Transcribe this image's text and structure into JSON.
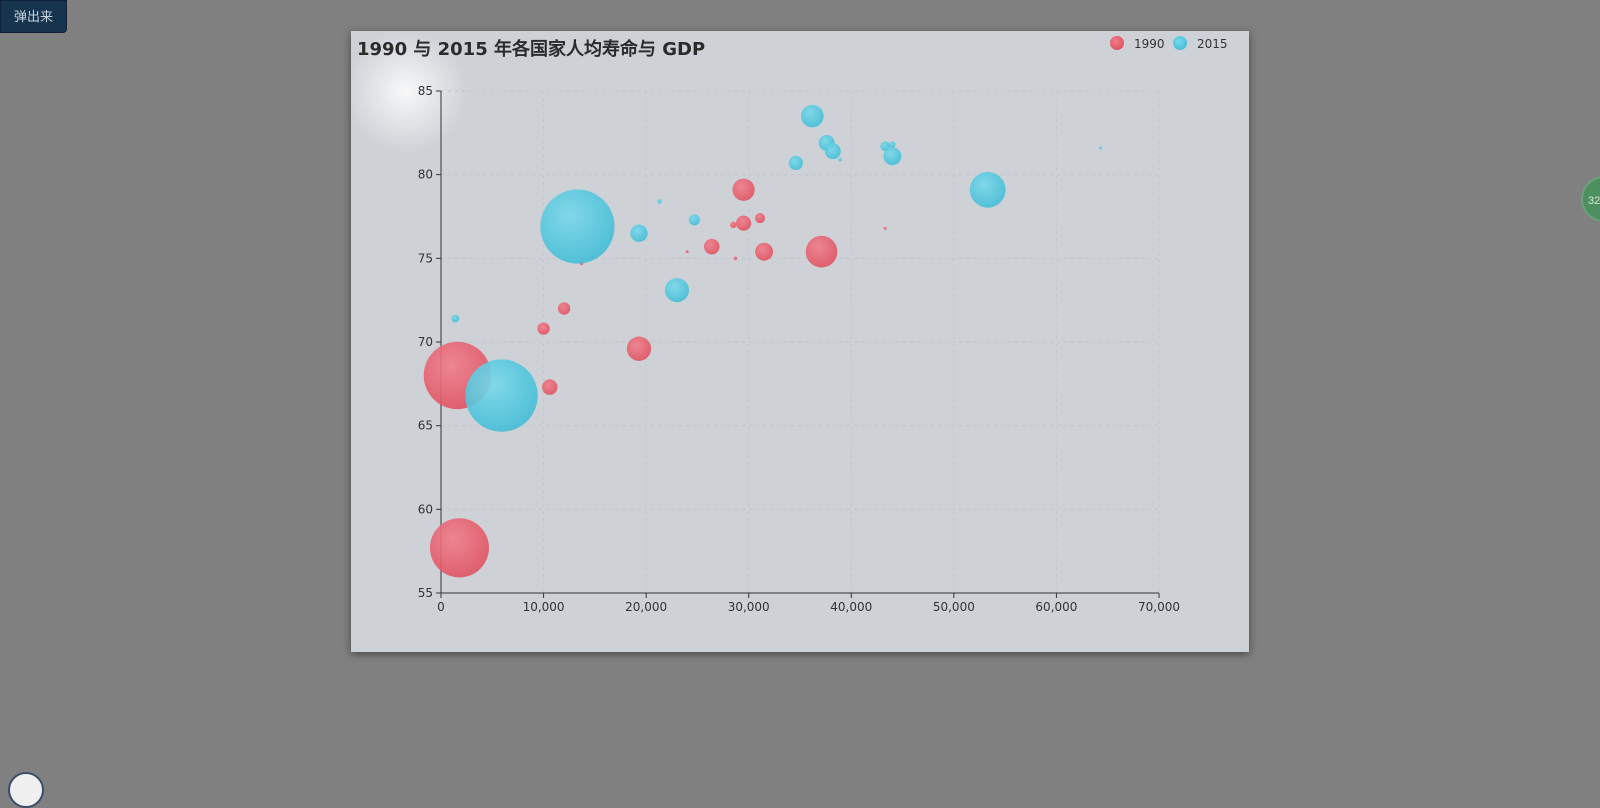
{
  "toolbar": {
    "popout_label": "弹出来"
  },
  "side_widget": {
    "text": "32"
  },
  "chart_data": {
    "type": "scatter",
    "title": "1990 与 2015 年各国家人均寿命与 GDP",
    "xlabel": "",
    "ylabel": "",
    "xlim": [
      0,
      70000
    ],
    "ylim": [
      55,
      85
    ],
    "xticks": [
      "0",
      "10,000",
      "20,000",
      "30,000",
      "40,000",
      "50,000",
      "60,000",
      "70,000"
    ],
    "yticks": [
      "55",
      "60",
      "65",
      "70",
      "75",
      "80",
      "85"
    ],
    "legend_position": "top-right",
    "series": [
      {
        "name": "1990",
        "color": "#e85a6b",
        "points": [
          {
            "x": 1600,
            "y": 68.0,
            "size": 1134
          },
          {
            "x": 1800,
            "y": 57.7,
            "size": 871
          },
          {
            "x": 10000,
            "y": 70.8,
            "size": 38
          },
          {
            "x": 12000,
            "y": 72.0,
            "size": 38
          },
          {
            "x": 10600,
            "y": 67.3,
            "size": 60
          },
          {
            "x": 19300,
            "y": 69.6,
            "size": 148
          },
          {
            "x": 13700,
            "y": 74.7,
            "size": 3
          },
          {
            "x": 24000,
            "y": 75.4,
            "size": 1
          },
          {
            "x": 26400,
            "y": 75.7,
            "size": 60
          },
          {
            "x": 28700,
            "y": 75.0,
            "size": 3
          },
          {
            "x": 28500,
            "y": 77.0,
            "size": 10
          },
          {
            "x": 29500,
            "y": 77.1,
            "size": 57
          },
          {
            "x": 31100,
            "y": 77.4,
            "size": 25
          },
          {
            "x": 29500,
            "y": 79.1,
            "size": 123
          },
          {
            "x": 31500,
            "y": 75.4,
            "size": 80
          },
          {
            "x": 37100,
            "y": 75.4,
            "size": 250
          },
          {
            "x": 43300,
            "y": 76.8,
            "size": 2
          }
        ]
      },
      {
        "name": "2015",
        "color": "#50c8de",
        "points": [
          {
            "x": 13300,
            "y": 76.9,
            "size": 1376
          },
          {
            "x": 5900,
            "y": 66.8,
            "size": 1311
          },
          {
            "x": 1400,
            "y": 71.4,
            "size": 15
          },
          {
            "x": 19300,
            "y": 76.5,
            "size": 75
          },
          {
            "x": 21300,
            "y": 78.4,
            "size": 5
          },
          {
            "x": 23000,
            "y": 73.1,
            "size": 145
          },
          {
            "x": 24700,
            "y": 77.3,
            "size": 30
          },
          {
            "x": 34600,
            "y": 80.7,
            "size": 50
          },
          {
            "x": 36200,
            "y": 83.5,
            "size": 127
          },
          {
            "x": 37600,
            "y": 81.9,
            "size": 64
          },
          {
            "x": 38200,
            "y": 81.4,
            "size": 63
          },
          {
            "x": 38900,
            "y": 80.9,
            "size": 3
          },
          {
            "x": 43300,
            "y": 81.7,
            "size": 23
          },
          {
            "x": 44000,
            "y": 81.1,
            "size": 80
          },
          {
            "x": 44000,
            "y": 81.8,
            "size": 10
          },
          {
            "x": 53300,
            "y": 79.1,
            "size": 320
          },
          {
            "x": 64300,
            "y": 81.6,
            "size": 1
          }
        ]
      }
    ]
  }
}
